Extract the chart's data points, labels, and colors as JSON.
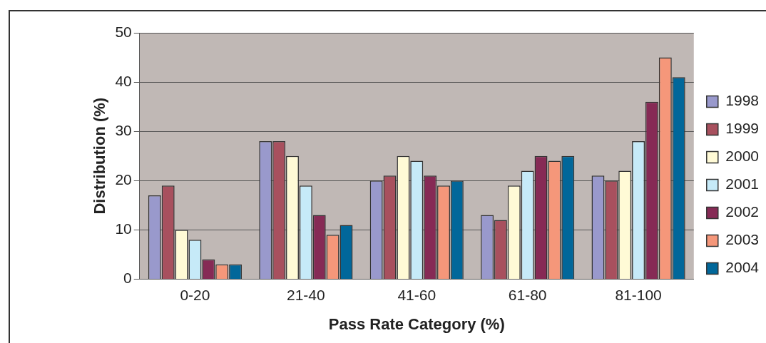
{
  "chart_data": {
    "type": "bar",
    "xlabel": "Pass Rate Category (%)",
    "ylabel": "Distribution (%)",
    "categories": [
      "0-20",
      "21-40",
      "41-60",
      "61-80",
      "81-100"
    ],
    "series": [
      {
        "name": "1998",
        "color": "#9999cc",
        "values": [
          17,
          28,
          20,
          13,
          21
        ]
      },
      {
        "name": "1999",
        "color": "#a8505e",
        "values": [
          19,
          28,
          21,
          12,
          20
        ]
      },
      {
        "name": "2000",
        "color": "#fffad6",
        "values": [
          10,
          25,
          25,
          19,
          22
        ]
      },
      {
        "name": "2001",
        "color": "#c6eaf8",
        "values": [
          8,
          19,
          24,
          22,
          28
        ]
      },
      {
        "name": "2002",
        "color": "#862a55",
        "values": [
          4,
          13,
          21,
          25,
          36
        ]
      },
      {
        "name": "2003",
        "color": "#f5977a",
        "values": [
          3,
          9,
          19,
          24,
          45
        ]
      },
      {
        "name": "2004",
        "color": "#01679a",
        "values": [
          3,
          11,
          20,
          25,
          41
        ]
      }
    ],
    "ylim": [
      0,
      50
    ],
    "yticks": [
      0,
      10,
      20,
      30,
      40,
      50
    ],
    "grid": "y",
    "legend": "right"
  }
}
